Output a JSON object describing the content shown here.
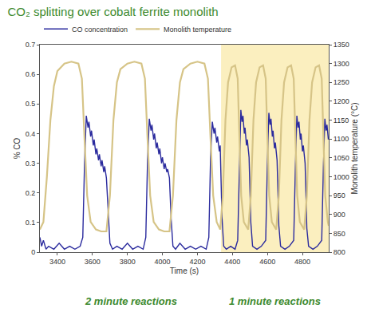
{
  "chart_data": {
    "type": "line",
    "title": "CO₂ splitting over cobalt ferrite monolith",
    "x_label": "Time (s)",
    "y_label": "% CO",
    "y2_label": "Monolith temperature (°C)",
    "xlim": [
      3300,
      4950
    ],
    "xticks": [
      3400,
      3600,
      3800,
      4000,
      4200,
      4400,
      4600,
      4800
    ],
    "ylim": [
      0,
      0.7
    ],
    "yticks": [
      0,
      0.1,
      0.2,
      0.3,
      0.4,
      0.5,
      0.6,
      0.7
    ],
    "y2lim": [
      800,
      1350
    ],
    "y2ticks": [
      800,
      850,
      900,
      950,
      1000,
      1050,
      1100,
      1150,
      1200,
      1250,
      1300,
      1350
    ],
    "grid": false,
    "legend": "top",
    "shaded_region": [
      4335,
      4950
    ],
    "annotations": [
      "2 minute reactions",
      "1 minute reactions"
    ],
    "series": [
      {
        "name": "CO concentration",
        "color": "#2b2b9e",
        "axis": "y",
        "x": [
          3300,
          3310,
          3320,
          3335,
          3350,
          3380,
          3410,
          3440,
          3470,
          3500,
          3530,
          3545,
          3555,
          3565,
          3575,
          3580,
          3590,
          3595,
          3605,
          3610,
          3620,
          3625,
          3635,
          3640,
          3650,
          3655,
          3665,
          3670,
          3680,
          3690,
          3700,
          3715,
          3740,
          3770,
          3800,
          3830,
          3860,
          3890,
          3905,
          3915,
          3925,
          3935,
          3940,
          3950,
          3955,
          3965,
          3970,
          3980,
          3985,
          3995,
          4000,
          4010,
          4015,
          4025,
          4030,
          4040,
          4050,
          4060,
          4075,
          4100,
          4130,
          4160,
          4190,
          4220,
          4250,
          4265,
          4275,
          4285,
          4295,
          4300,
          4310,
          4315,
          4325,
          4330,
          4340,
          4350,
          4365,
          4390,
          4415,
          4430,
          4440,
          4448,
          4455,
          4460,
          4468,
          4472,
          4480,
          4485,
          4495,
          4505,
          4515,
          4540,
          4565,
          4590,
          4600,
          4608,
          4615,
          4620,
          4628,
          4632,
          4640,
          4645,
          4655,
          4665,
          4675,
          4700,
          4725,
          4750,
          4760,
          4768,
          4775,
          4780,
          4788,
          4792,
          4800,
          4805,
          4815,
          4825,
          4835,
          4860,
          4885,
          4910,
          4920,
          4928,
          4935,
          4940,
          4948
        ],
        "values": [
          0.05,
          0.02,
          0.04,
          0.01,
          0.02,
          0.01,
          0.03,
          0.01,
          0.02,
          0.01,
          0.02,
          0.05,
          0.3,
          0.46,
          0.42,
          0.44,
          0.39,
          0.41,
          0.36,
          0.38,
          0.33,
          0.35,
          0.31,
          0.33,
          0.29,
          0.31,
          0.27,
          0.29,
          0.25,
          0.12,
          0.03,
          0.01,
          0.02,
          0.01,
          0.03,
          0.01,
          0.02,
          0.01,
          0.05,
          0.31,
          0.45,
          0.41,
          0.43,
          0.38,
          0.4,
          0.35,
          0.37,
          0.33,
          0.35,
          0.3,
          0.32,
          0.28,
          0.3,
          0.27,
          0.28,
          0.25,
          0.11,
          0.02,
          0.01,
          0.03,
          0.01,
          0.02,
          0.01,
          0.02,
          0.01,
          0.05,
          0.32,
          0.44,
          0.4,
          0.42,
          0.37,
          0.39,
          0.34,
          0.36,
          0.12,
          0.02,
          0.01,
          0.02,
          0.01,
          0.04,
          0.3,
          0.48,
          0.44,
          0.46,
          0.4,
          0.42,
          0.36,
          0.38,
          0.32,
          0.1,
          0.02,
          0.01,
          0.02,
          0.04,
          0.31,
          0.47,
          0.43,
          0.45,
          0.39,
          0.41,
          0.35,
          0.37,
          0.31,
          0.09,
          0.02,
          0.01,
          0.02,
          0.04,
          0.3,
          0.46,
          0.42,
          0.44,
          0.38,
          0.4,
          0.34,
          0.36,
          0.3,
          0.08,
          0.02,
          0.01,
          0.02,
          0.04,
          0.3,
          0.45,
          0.41,
          0.43,
          0.38
        ]
      },
      {
        "name": "Monolith temperature",
        "color": "#d6c487",
        "axis": "y2",
        "x": [
          3300,
          3320,
          3340,
          3360,
          3380,
          3400,
          3440,
          3480,
          3520,
          3540,
          3555,
          3570,
          3590,
          3620,
          3650,
          3680,
          3700,
          3720,
          3740,
          3760,
          3800,
          3840,
          3880,
          3900,
          3915,
          3930,
          3950,
          3980,
          4010,
          4040,
          4060,
          4080,
          4100,
          4120,
          4160,
          4200,
          4240,
          4260,
          4275,
          4290,
          4310,
          4330,
          4345,
          4360,
          4375,
          4395,
          4415,
          4430,
          4440,
          4450,
          4465,
          4490,
          4505,
          4520,
          4535,
          4555,
          4575,
          4590,
          4600,
          4610,
          4625,
          4650,
          4665,
          4680,
          4695,
          4715,
          4735,
          4750,
          4760,
          4770,
          4785,
          4810,
          4825,
          4840,
          4855,
          4875,
          4895,
          4910,
          4920,
          4930,
          4945,
          4950
        ],
        "values": [
          860,
          880,
          1000,
          1150,
          1240,
          1280,
          1300,
          1305,
          1300,
          1260,
          1100,
          950,
          880,
          860,
          855,
          855,
          950,
          1150,
          1250,
          1285,
          1300,
          1305,
          1300,
          1260,
          1100,
          950,
          880,
          860,
          855,
          855,
          950,
          1150,
          1250,
          1285,
          1300,
          1305,
          1300,
          1260,
          1100,
          950,
          880,
          860,
          950,
          1150,
          1250,
          1290,
          1295,
          1260,
          1100,
          950,
          880,
          860,
          950,
          1150,
          1250,
          1290,
          1295,
          1260,
          1100,
          950,
          880,
          860,
          950,
          1150,
          1250,
          1290,
          1295,
          1260,
          1100,
          950,
          880,
          860,
          950,
          1150,
          1250,
          1290,
          1295,
          1260,
          1100,
          950,
          880,
          870
        ]
      }
    ]
  }
}
